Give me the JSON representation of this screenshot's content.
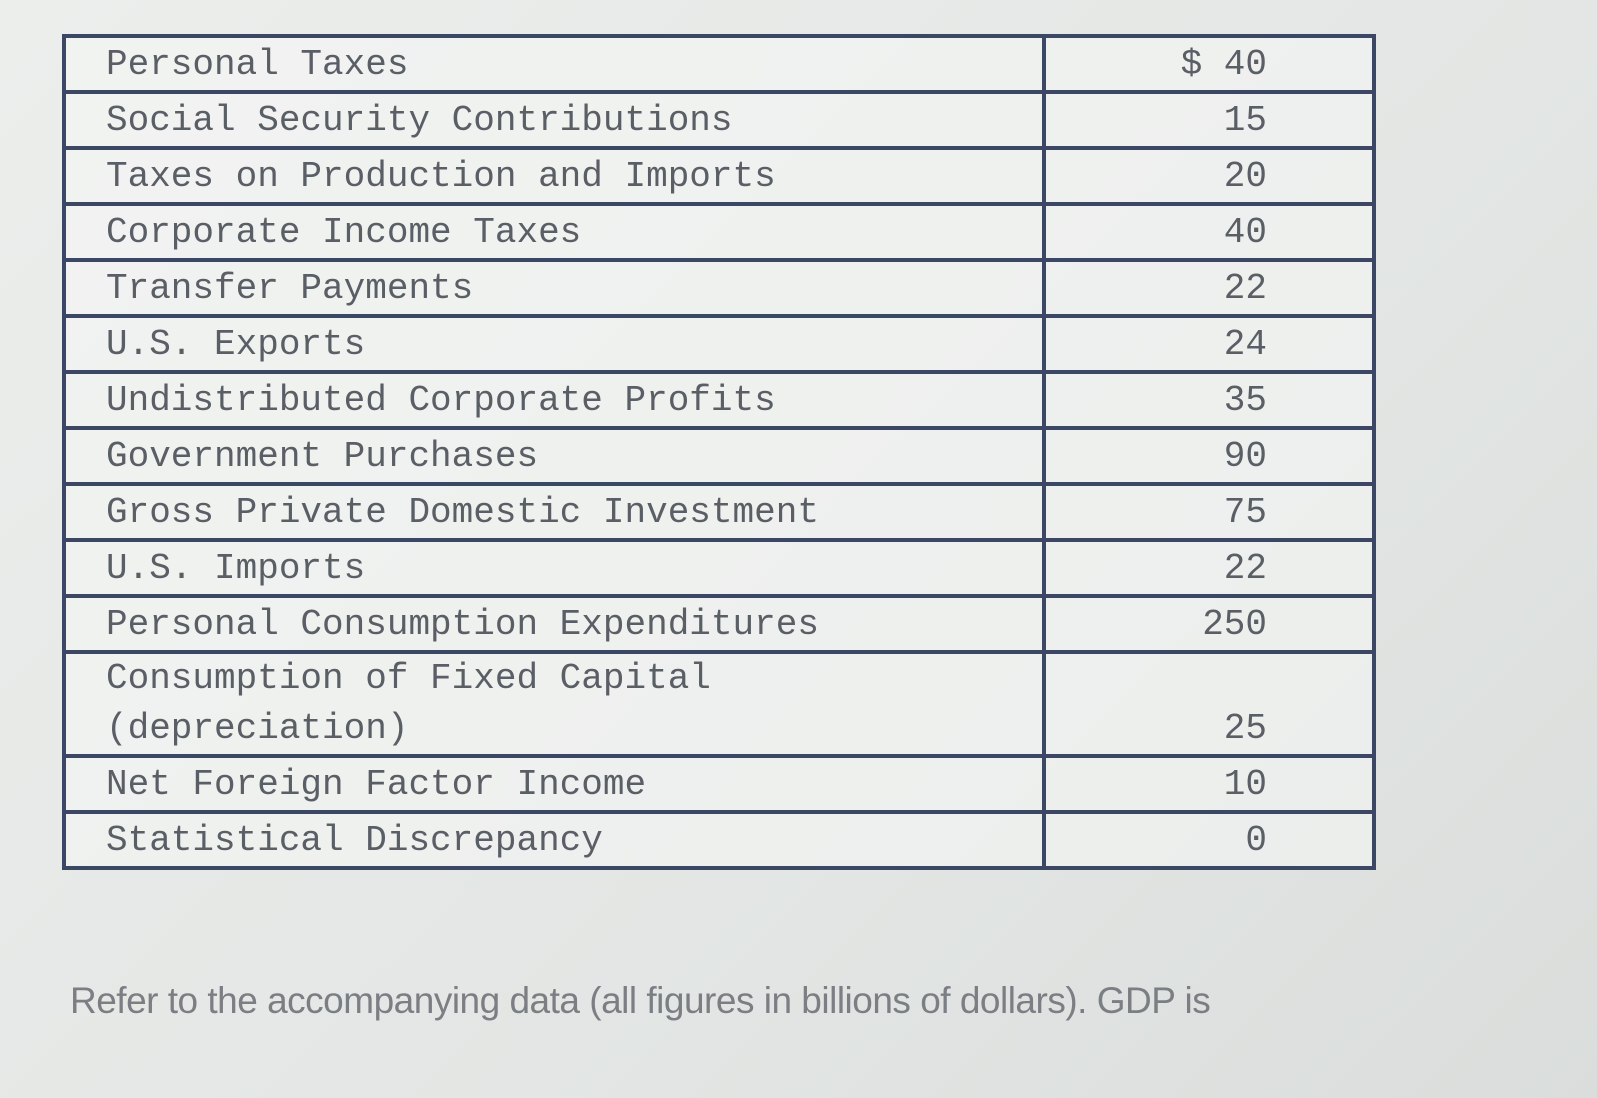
{
  "table": {
    "rows": [
      {
        "label": "Personal Taxes",
        "value": "$ 40"
      },
      {
        "label": "Social Security Contributions",
        "value": "15"
      },
      {
        "label": "Taxes on Production and Imports",
        "value": "20"
      },
      {
        "label": "Corporate Income Taxes",
        "value": "40"
      },
      {
        "label": "Transfer Payments",
        "value": "22"
      },
      {
        "label": "U.S. Exports",
        "value": "24"
      },
      {
        "label": "Undistributed Corporate Profits",
        "value": "35"
      },
      {
        "label": "Government Purchases",
        "value": "90"
      },
      {
        "label": "Gross Private Domestic Investment",
        "value": "75"
      },
      {
        "label": "U.S. Imports",
        "value": "22"
      },
      {
        "label": "Personal Consumption Expenditures",
        "value": "250"
      },
      {
        "label": "Consumption of Fixed Capital (depreciation)",
        "value": "25"
      },
      {
        "label": "Net Foreign Factor Income",
        "value": "10"
      },
      {
        "label": "Statistical Discrepancy",
        "value": "0"
      }
    ]
  },
  "question": {
    "text": "Refer to the accompanying data (all figures in billions of dollars). GDP is"
  }
}
